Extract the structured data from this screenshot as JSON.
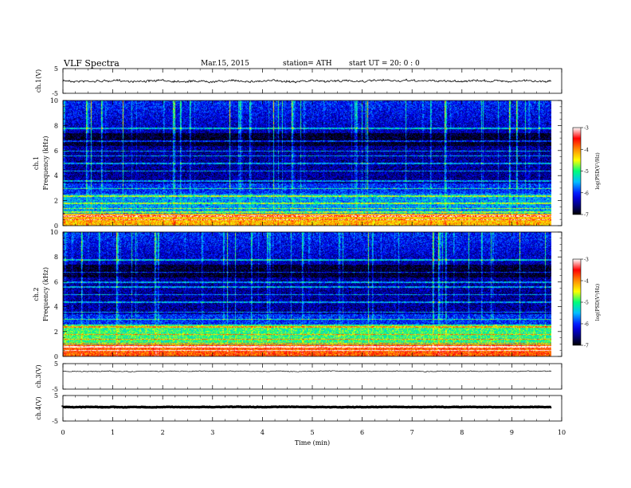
{
  "header": {
    "title": "VLF  Spectra",
    "date": "Mar.15, 2015",
    "station": "station= ATH",
    "start": "start  UT =  20: 0  : 0"
  },
  "chart_data": [
    {
      "type": "line",
      "name": "ch1-waveform",
      "ylabel": "ch.1(V)",
      "ylim": [
        -5,
        5
      ],
      "ytick_labels": [
        "5",
        "-5"
      ]
    },
    {
      "type": "heatmap",
      "name": "ch1-spectrogram",
      "ylabel": "Frequency  (kHz)",
      "channel_label": "ch.1",
      "ylim": [
        0,
        10
      ],
      "yticks": [
        0,
        2,
        4,
        6,
        8,
        10
      ],
      "colorbar": {
        "label": "log(PSD(V²/Hz)",
        "range": [
          -7,
          -3
        ],
        "ticks": [
          -7,
          -6,
          -5,
          -4,
          -3
        ]
      }
    },
    {
      "type": "heatmap",
      "name": "ch2-spectrogram",
      "ylabel": "Frequency  (kHz)",
      "channel_label": "ch.2",
      "ylim": [
        0,
        10
      ],
      "yticks": [
        0,
        2,
        4,
        6,
        8,
        10
      ],
      "colorbar": {
        "label": "log(PSD(V²/Hz)",
        "range": [
          -7,
          -3
        ],
        "ticks": [
          -7,
          -6,
          -5,
          -4,
          -3
        ]
      }
    },
    {
      "type": "line",
      "name": "ch3-waveform",
      "ylabel": "ch.3(V)",
      "ylim": [
        -5,
        5
      ],
      "ytick_labels": [
        "5",
        "-5"
      ]
    },
    {
      "type": "line",
      "name": "ch4-waveform",
      "ylabel": "ch.4(V)",
      "ylim": [
        -5,
        5
      ],
      "ytick_labels": [
        "5",
        "-5"
      ]
    }
  ],
  "x_axis": {
    "label": "Time  (min)",
    "range": [
      0,
      10
    ],
    "ticks": [
      0,
      1,
      2,
      3,
      4,
      5,
      6,
      7,
      8,
      9,
      10
    ],
    "data_end": 9.8
  },
  "colors": {
    "waveform": "#000000",
    "colormap": [
      "#000000",
      "#00008b",
      "#0000ff",
      "#00c8ff",
      "#00ff80",
      "#ffff00",
      "#ff8000",
      "#ff0000",
      "#ffffff"
    ]
  }
}
